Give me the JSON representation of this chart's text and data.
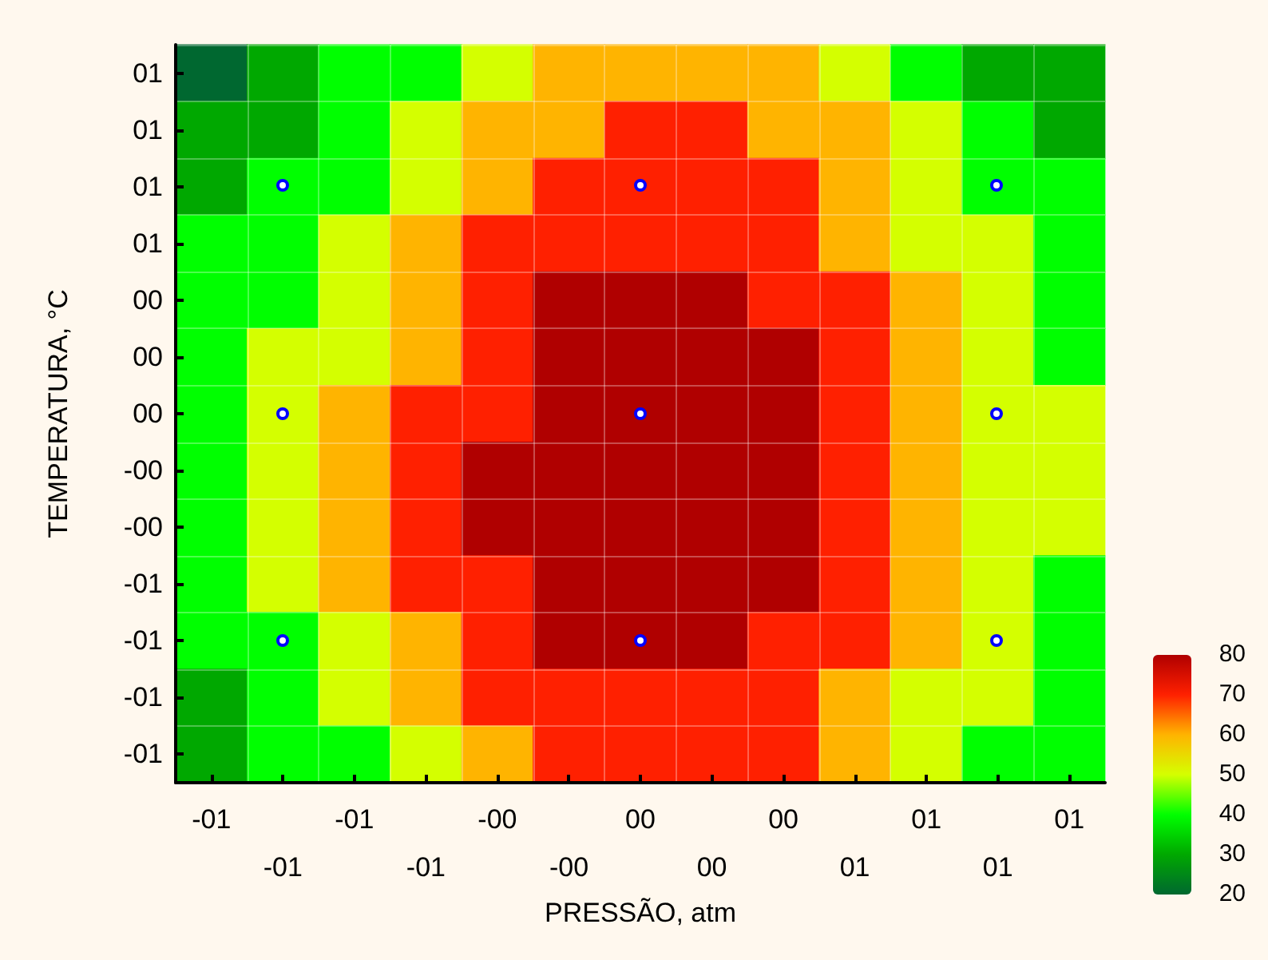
{
  "chart_data": {
    "type": "heatmap",
    "xlabel": "PRESSÃO, atm",
    "ylabel": "TEMPERATURA, °C",
    "categories": [
      "-01",
      "-01",
      "-01",
      "-01",
      "-00",
      "-00",
      "00",
      "00",
      "00",
      "01",
      "01",
      "01",
      "01"
    ],
    "y_categories": [
      "01",
      "01",
      "01",
      "01",
      "00",
      "00",
      "00",
      "-00",
      "-00",
      "-01",
      "-01",
      "-01",
      "-01"
    ],
    "cells": [
      [
        20,
        30,
        40,
        40,
        50,
        60,
        60,
        60,
        60,
        50,
        40,
        30,
        30
      ],
      [
        30,
        30,
        40,
        50,
        60,
        60,
        70,
        70,
        60,
        60,
        50,
        40,
        30
      ],
      [
        30,
        40,
        40,
        50,
        60,
        70,
        70,
        70,
        70,
        60,
        50,
        40,
        40
      ],
      [
        40,
        40,
        50,
        60,
        70,
        70,
        70,
        70,
        70,
        60,
        50,
        50,
        40
      ],
      [
        40,
        40,
        50,
        60,
        70,
        80,
        80,
        80,
        70,
        70,
        60,
        50,
        40
      ],
      [
        40,
        50,
        50,
        60,
        70,
        80,
        80,
        80,
        80,
        70,
        60,
        50,
        40
      ],
      [
        40,
        50,
        60,
        70,
        70,
        80,
        80,
        80,
        80,
        70,
        60,
        50,
        50
      ],
      [
        40,
        50,
        60,
        70,
        80,
        80,
        80,
        80,
        80,
        70,
        60,
        50,
        50
      ],
      [
        40,
        50,
        60,
        70,
        80,
        80,
        80,
        80,
        80,
        70,
        60,
        50,
        50
      ],
      [
        40,
        50,
        60,
        70,
        70,
        80,
        80,
        80,
        80,
        70,
        60,
        50,
        40
      ],
      [
        40,
        40,
        50,
        60,
        70,
        80,
        80,
        80,
        70,
        70,
        60,
        50,
        40
      ],
      [
        30,
        40,
        50,
        60,
        70,
        70,
        70,
        70,
        70,
        60,
        50,
        50,
        40
      ],
      [
        30,
        40,
        40,
        50,
        60,
        70,
        70,
        70,
        70,
        60,
        50,
        40,
        40
      ]
    ],
    "clim": [
      20,
      80
    ],
    "cticks": [
      80,
      70,
      60,
      50,
      40,
      30,
      20
    ],
    "colors": [
      "#b00000",
      "#ff2000",
      "#ffb400",
      "#d4ff00",
      "#00ff00",
      "#00a800",
      "#006830"
    ],
    "grid": true
  }
}
